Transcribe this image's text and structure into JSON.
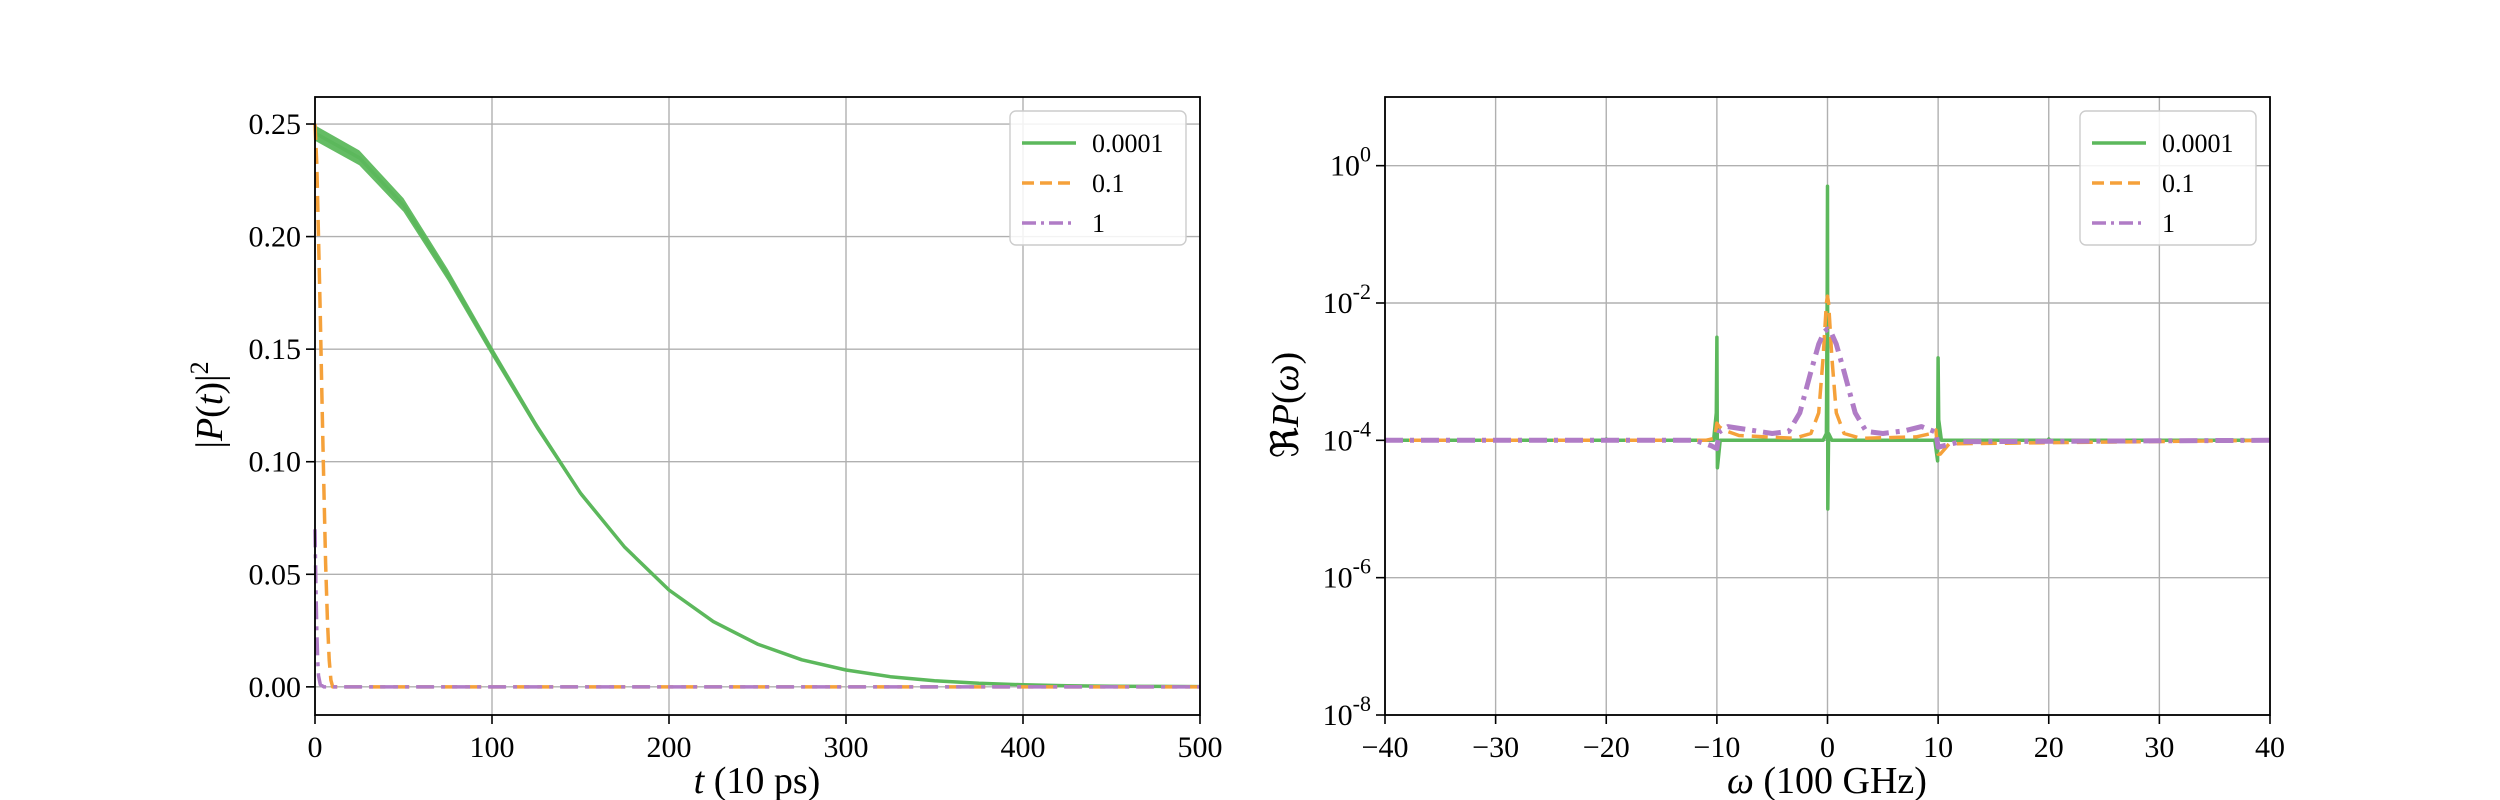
{
  "chart_data": [
    {
      "type": "line",
      "xlabel": "t (10 ps)",
      "ylabel": "|P(t)|²",
      "xlim": [
        0,
        500
      ],
      "ylim": [
        -0.0125,
        0.262
      ],
      "yscale": "linear",
      "grid": true,
      "legend_position": "top-right",
      "x_ticks": [
        "0",
        "100",
        "200",
        "300",
        "400",
        "500"
      ],
      "y_ticks": [
        "0.00",
        "0.05",
        "0.10",
        "0.15",
        "0.20",
        "0.25"
      ],
      "series": [
        {
          "name": "0.0001",
          "color": "#5cb85c",
          "style": "solid",
          "band": true,
          "x": [
            0,
            25,
            50,
            75,
            100,
            125,
            150,
            175,
            200,
            225,
            250,
            275,
            300,
            325,
            350,
            375,
            400,
            425,
            450,
            475,
            500
          ],
          "y": [
            0.246,
            0.235,
            0.214,
            0.183,
            0.149,
            0.116,
            0.086,
            0.062,
            0.043,
            0.029,
            0.019,
            0.012,
            0.0075,
            0.0045,
            0.0027,
            0.0016,
            0.0009,
            0.0005,
            0.0003,
            0.0002,
            0.0001
          ]
        },
        {
          "name": "0.1",
          "color": "#f5a13a",
          "style": "dashed",
          "x": [
            0,
            1,
            2,
            3,
            4,
            5,
            6,
            7,
            8,
            9,
            10,
            20,
            100,
            500
          ],
          "y": [
            0.25,
            0.232,
            0.2,
            0.165,
            0.125,
            0.088,
            0.055,
            0.03,
            0.012,
            0.003,
            0.0,
            0.0,
            0.0,
            0.0
          ]
        },
        {
          "name": "1",
          "color": "#b07cc6",
          "style": "dashdot",
          "x": [
            0,
            0.5,
            1,
            1.5,
            2,
            3,
            5,
            10,
            100,
            500
          ],
          "y": [
            0.07,
            0.045,
            0.025,
            0.012,
            0.005,
            0.001,
            0.0,
            0.0,
            0.0,
            0.0
          ]
        }
      ]
    },
    {
      "type": "line",
      "xlabel": "ω (100 GHz)",
      "ylabel": "ℜP(ω)",
      "xlim": [
        -40,
        40
      ],
      "ylim": [
        -8,
        1
      ],
      "yscale": "log",
      "grid": true,
      "legend_position": "top-right",
      "x_ticks": [
        "−40",
        "−30",
        "−20",
        "−10",
        "0",
        "10",
        "20",
        "30",
        "40"
      ],
      "y_ticks": [
        {
          "base": "10",
          "exp": "-8",
          "value": -8
        },
        {
          "base": "10",
          "exp": "-6",
          "value": -6
        },
        {
          "base": "10",
          "exp": "-4",
          "value": -4
        },
        {
          "base": "10",
          "exp": "-2",
          "value": -2
        },
        {
          "base": "10",
          "exp": "0",
          "value": 0
        }
      ],
      "series": [
        {
          "name": "0.0001",
          "color": "#5cb85c",
          "style": "solid",
          "x": [
            -40,
            -20.1,
            -20,
            -19.9,
            -10.3,
            -10.05,
            -10,
            -9.95,
            -9.7,
            -0.4,
            -0.1,
            -0.03,
            0,
            0.03,
            0.1,
            0.4,
            9.7,
            9.95,
            10,
            10.05,
            10.3,
            19.9,
            20,
            20.1,
            40
          ],
          "y": [
            -4,
            -4,
            -3.98,
            -4,
            -4,
            -3.6,
            -2.5,
            -4.4,
            -4,
            -4,
            -3.9,
            -1.8,
            -0.3,
            -5.0,
            -3.9,
            -4,
            -4,
            -4.3,
            -2.8,
            -3.7,
            -4,
            -4,
            -3.98,
            -4,
            -4
          ]
        },
        {
          "name": "0.1",
          "color": "#f5a13a",
          "style": "dashed",
          "x": [
            -40,
            -11,
            -10.2,
            -10,
            -9.8,
            -9.4,
            -8,
            -3,
            -1.5,
            -0.8,
            -0.4,
            -0.1,
            0,
            0.1,
            0.4,
            0.8,
            1.5,
            3,
            8,
            9.4,
            9.8,
            10,
            10.2,
            11,
            40
          ],
          "y": [
            -4,
            -4,
            -3.97,
            -3.75,
            -3.8,
            -3.85,
            -3.93,
            -3.97,
            -3.9,
            -3.6,
            -2.8,
            -2.0,
            -1.9,
            -2.0,
            -2.8,
            -3.6,
            -3.9,
            -3.97,
            -3.95,
            -3.9,
            -3.85,
            -4.2,
            -4.2,
            -4.05,
            -4
          ]
        },
        {
          "name": "1",
          "color": "#b07cc6",
          "style": "dashdot",
          "x": [
            -40,
            -12,
            -10.5,
            -10,
            -9.8,
            -9,
            -7,
            -5,
            -3.5,
            -2.5,
            -1.5,
            -0.8,
            -0.3,
            0,
            0.3,
            0.8,
            1.5,
            2.5,
            3.5,
            5,
            7,
            8.5,
            9.8,
            10,
            10.5,
            12,
            40
          ],
          "y": [
            -4,
            -4,
            -4.08,
            -4.12,
            -3.88,
            -3.8,
            -3.85,
            -3.9,
            -3.87,
            -3.6,
            -3.0,
            -2.6,
            -2.42,
            -2.38,
            -2.42,
            -2.6,
            -3.0,
            -3.6,
            -3.87,
            -3.9,
            -3.86,
            -3.8,
            -3.88,
            -4.1,
            -4.08,
            -4.02,
            -4
          ]
        }
      ]
    }
  ]
}
